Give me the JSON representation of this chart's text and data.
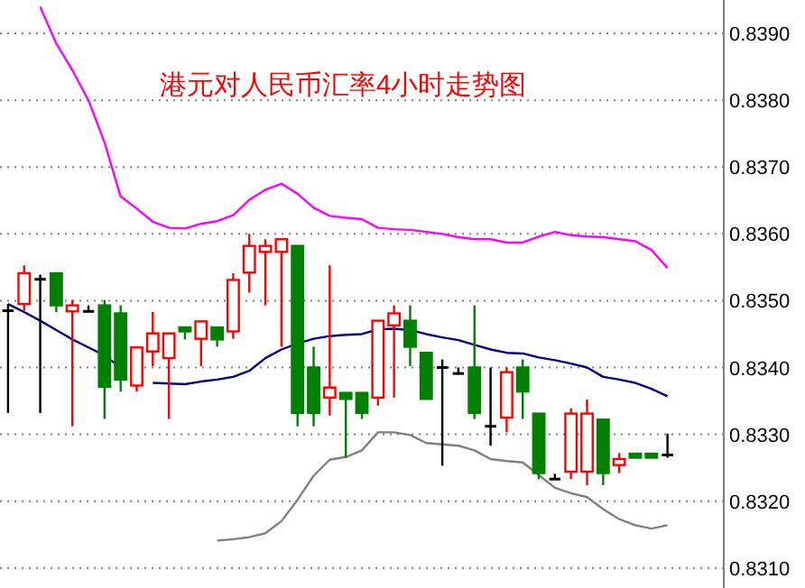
{
  "chart_data": {
    "type": "candlestick",
    "title": "港元对人民币汇率4小时走势图",
    "categories": [
      null,
      null,
      null,
      null,
      null,
      null,
      null,
      null,
      null,
      null,
      null,
      null,
      null,
      null,
      null,
      null,
      null,
      null,
      null,
      null,
      null,
      null,
      null,
      null,
      null,
      null,
      null,
      null,
      null,
      null,
      null,
      null,
      null,
      null,
      null,
      null,
      null,
      null,
      null,
      null,
      null,
      null
    ],
    "ohlc": [
      [
        0.83485,
        0.83495,
        0.83332,
        0.83485
      ],
      [
        0.83495,
        0.83553,
        0.83485,
        0.83541
      ],
      [
        0.83532,
        0.83539,
        0.83332,
        0.83532
      ],
      [
        0.83541,
        0.83541,
        0.83483,
        0.83493
      ],
      [
        0.83484,
        0.83501,
        0.83312,
        0.83493
      ],
      [
        0.83484,
        0.83493,
        0.83484,
        0.83484
      ],
      [
        0.83493,
        0.83501,
        0.83323,
        0.83371
      ],
      [
        0.83481,
        0.83493,
        0.83364,
        0.83382
      ],
      [
        0.83373,
        0.8343,
        0.83364,
        0.8343
      ],
      [
        0.83424,
        0.83483,
        0.83402,
        0.83451
      ],
      [
        0.83414,
        0.83451,
        0.83323,
        0.83451
      ],
      [
        0.8346,
        0.8346,
        0.83442,
        0.83454
      ],
      [
        0.83443,
        0.83469,
        0.83402,
        0.83469
      ],
      [
        0.8346,
        0.8346,
        0.83431,
        0.83442
      ],
      [
        0.83454,
        0.83541,
        0.83443,
        0.83531
      ],
      [
        0.83542,
        0.836,
        0.83512,
        0.83582
      ],
      [
        0.83573,
        0.83592,
        0.83493,
        0.83582
      ],
      [
        0.83573,
        0.83592,
        0.83431,
        0.83592
      ],
      [
        0.83582,
        0.83582,
        0.83312,
        0.83332
      ],
      [
        0.834,
        0.83431,
        0.83312,
        0.83332
      ],
      [
        0.83355,
        0.83553,
        0.83328,
        0.8337
      ],
      [
        0.83362,
        0.83362,
        0.83265,
        0.83353
      ],
      [
        0.83362,
        0.83362,
        0.83323,
        0.83332
      ],
      [
        0.83355,
        0.8347,
        0.83343,
        0.8347
      ],
      [
        0.83463,
        0.83493,
        0.83355,
        0.83481
      ],
      [
        0.8347,
        0.83493,
        0.83402,
        0.83431
      ],
      [
        0.83422,
        0.83422,
        0.83353,
        0.83353
      ],
      [
        0.834,
        0.83412,
        0.83253,
        0.834
      ],
      [
        0.83391,
        0.834,
        0.83391,
        0.83391
      ],
      [
        0.834,
        0.83493,
        0.83323,
        0.83332
      ],
      [
        0.83312,
        0.834,
        0.83283,
        0.83312
      ],
      [
        0.83325,
        0.834,
        0.83303,
        0.83393
      ],
      [
        0.834,
        0.83412,
        0.83323,
        0.83364
      ],
      [
        0.83331,
        0.83331,
        0.83233,
        0.83242
      ],
      [
        0.83233,
        0.83241,
        0.83233,
        0.83233
      ],
      [
        0.83244,
        0.83339,
        0.83233,
        0.83331
      ],
      [
        0.83244,
        0.83352,
        0.83224,
        0.83331
      ],
      [
        0.83322,
        0.83322,
        0.83224,
        0.83242
      ],
      [
        0.83254,
        0.83272,
        0.83242,
        0.83263
      ],
      [
        0.83271,
        0.83271,
        0.83265,
        0.83265
      ],
      [
        0.83271,
        0.83271,
        0.83265,
        0.83265
      ],
      [
        0.83269,
        0.83301,
        0.83265,
        0.83269
      ]
    ],
    "colors": [
      "#000000",
      "#ff0000",
      "#000000",
      "#008000",
      "#ff0000",
      "#000000",
      "#008000",
      "#008000",
      "#ff0000",
      "#ff0000",
      "#ff0000",
      "#008000",
      "#ff0000",
      "#008000",
      "#ff0000",
      "#ff0000",
      "#ff0000",
      "#ff0000",
      "#008000",
      "#008000",
      "#ff0000",
      "#008000",
      "#008000",
      "#ff0000",
      "#ff0000",
      "#008000",
      "#008000",
      "#000000",
      "#000000",
      "#008000",
      "#000000",
      "#ff0000",
      "#008000",
      "#008000",
      "#000000",
      "#ff0000",
      "#ff0000",
      "#008000",
      "#ff0000",
      "#008000",
      "#008000",
      "#000000"
    ],
    "series": [
      {
        "type": "line",
        "color": "#ff00ff",
        "values": [
          null,
          null,
          0.8394,
          0.83885,
          0.83845,
          0.838,
          0.83737,
          0.83656,
          0.83638,
          0.83618,
          0.83609,
          0.83608,
          0.83615,
          0.83619,
          0.83628,
          0.83651,
          0.83666,
          0.83675,
          0.8366,
          0.83639,
          0.83627,
          0.83624,
          0.83622,
          0.83609,
          0.83607,
          0.83606,
          0.83603,
          0.836,
          0.83595,
          0.83592,
          0.83592,
          0.83587,
          0.83587,
          0.83596,
          0.83603,
          0.83598,
          0.83596,
          0.83595,
          0.83592,
          0.83589,
          0.83576,
          0.83549
        ]
      },
      {
        "type": "line",
        "color": "#000080",
        "values": [
          0.83495,
          0.83483,
          0.8347,
          0.83456,
          0.83442,
          0.8343,
          0.83418,
          0.834,
          null,
          0.83377,
          0.83376,
          0.83375,
          0.83379,
          0.83382,
          0.83386,
          0.83395,
          0.83414,
          0.83427,
          0.83436,
          0.83443,
          0.83447,
          0.83449,
          0.8345,
          0.83457,
          0.83458,
          0.83456,
          0.8345,
          0.83445,
          0.83441,
          0.83434,
          0.83427,
          0.83422,
          0.83421,
          0.83415,
          0.83411,
          0.83406,
          0.834,
          0.83386,
          0.83382,
          0.83377,
          0.83368,
          0.83357
        ]
      },
      {
        "type": "line",
        "color": "#808080",
        "values": [
          null,
          null,
          null,
          null,
          null,
          null,
          null,
          null,
          null,
          null,
          null,
          null,
          null,
          0.83141,
          0.83143,
          0.83146,
          0.83152,
          0.8317,
          0.83202,
          0.83238,
          0.83262,
          0.83266,
          0.83276,
          0.83303,
          0.83303,
          0.83299,
          0.83287,
          0.83285,
          0.83283,
          0.83276,
          0.83263,
          0.8326,
          0.83258,
          0.83239,
          0.8322,
          0.83212,
          0.83206,
          0.83188,
          0.83173,
          0.83164,
          0.83159,
          0.83164
        ]
      }
    ],
    "ylim": [
      0.8307,
      0.8395
    ],
    "yticks": [
      {
        "value": 0.831,
        "label": "0.8310"
      },
      {
        "value": 0.832,
        "label": "0.8320"
      },
      {
        "value": 0.833,
        "label": "0.8330"
      },
      {
        "value": 0.834,
        "label": "0.8340"
      },
      {
        "value": 0.835,
        "label": "0.8350"
      },
      {
        "value": 0.836,
        "label": "0.8360"
      },
      {
        "value": 0.837,
        "label": "0.8370"
      },
      {
        "value": 0.838,
        "label": "0.8380"
      },
      {
        "value": 0.839,
        "label": "0.8390"
      }
    ],
    "grid": "y",
    "tick_labels": "y"
  }
}
